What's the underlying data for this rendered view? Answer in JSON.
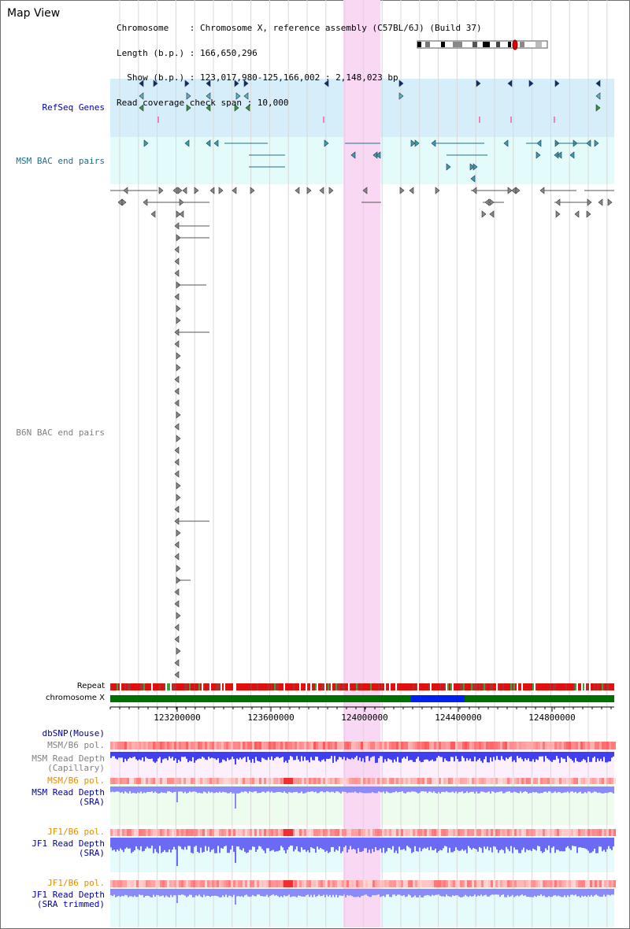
{
  "header": {
    "view_title": "Map View",
    "lines": [
      "Chromosome    : Chromosome X, reference assembly (C57BL/6J) (Build 37)",
      "Length (b.p.) : 166,650,296",
      "  Show (b.p.) : 123,017,980-125,166,002 : 2,148,023 bp",
      "Read coverage check span : 10,000"
    ]
  },
  "tracks": {
    "refseq": "RefSeq Genes",
    "msm_bac": "MSM BAC end pairs",
    "b6n_bac": "B6N BAC end pairs",
    "repeat": "Repeat",
    "chromosome": "chromosome X",
    "dbsnp": "dbSNP(Mouse)",
    "msm_b6_pol_1": "MSM/B6 pol.",
    "msm_depth_cap_1": "MSM Read Depth",
    "msm_depth_cap_2": "(Capillary)",
    "msm_b6_pol_2": "MSM/B6 pol.",
    "msm_depth_sra_1": "MSM Read Depth",
    "msm_depth_sra_2": "(SRA)",
    "jf1_b6_pol_1": "JF1/B6 pol.",
    "jf1_depth_sra_1": "JF1 Read Depth",
    "jf1_depth_sra_2": "(SRA)",
    "jf1_b6_pol_2": "JF1/B6 pol.",
    "jf1_depth_trim_1": "JF1 Read Depth",
    "jf1_depth_trim_2": "(SRA trimmed)"
  },
  "axis": {
    "ticks": [
      "123200000",
      "123600000",
      "124000000",
      "124400000",
      "124800000"
    ]
  },
  "colors": {
    "refseq_bg": "#d6eefa",
    "msm_bg": "#e3fbfb",
    "highlight": "#f8d8f2",
    "chromosome_bar": "#007000",
    "chromosome_gap": "#0020f0",
    "depth_blue": "#4040f0",
    "pol_red": "#f05050"
  }
}
